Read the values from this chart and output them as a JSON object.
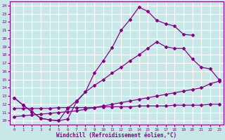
{
  "background_color": "#c8e8e8",
  "grid_color": "#ffffff",
  "line_color": "#880088",
  "xlabel": "Windchill (Refroidissement éolien,°C)",
  "xlim": [
    -0.5,
    23.5
  ],
  "ylim": [
    9.5,
    24.5
  ],
  "xticks": [
    0,
    1,
    2,
    3,
    4,
    5,
    6,
    7,
    8,
    9,
    10,
    11,
    12,
    13,
    14,
    15,
    16,
    17,
    18,
    19,
    20,
    21,
    22,
    23
  ],
  "yticks": [
    10,
    11,
    12,
    13,
    14,
    15,
    16,
    17,
    18,
    19,
    20,
    21,
    22,
    23,
    24
  ],
  "curve1_x": [
    0,
    1,
    2,
    3,
    4,
    5,
    6,
    7,
    8,
    9,
    10,
    11,
    12,
    13,
    14,
    15,
    16,
    17,
    18,
    19,
    20,
    21,
    22,
    23
  ],
  "curve1_y": [
    12.8,
    11.9,
    11.1,
    10.3,
    10.1,
    10.0,
    10.2,
    12.3,
    13.5,
    15.8,
    17.3,
    18.9,
    21.0,
    22.3,
    23.8,
    23.3,
    22.2,
    21.8,
    21.5,
    20.5,
    20.4,
    null,
    null,
    null
  ],
  "curve2_x": [
    0,
    1,
    2,
    3,
    4,
    5,
    6,
    7,
    8,
    9,
    10,
    11,
    12,
    13,
    14,
    15,
    16,
    17,
    18,
    19,
    20,
    21,
    22,
    23
  ],
  "curve2_y": [
    12.8,
    11.9,
    11.1,
    10.3,
    10.1,
    10.0,
    11.5,
    12.4,
    13.5,
    14.3,
    15.0,
    15.8,
    16.5,
    17.3,
    18.0,
    18.8,
    19.6,
    19.0,
    18.8,
    18.8,
    17.5,
    16.5,
    16.3,
    15.0
  ],
  "curve3_x": [
    0,
    1,
    2,
    3,
    4,
    5,
    6,
    7,
    8,
    9,
    10,
    11,
    12,
    13,
    14,
    15,
    16,
    17,
    18,
    19,
    20,
    21,
    22,
    23
  ],
  "curve3_y": [
    10.5,
    10.6,
    10.7,
    10.8,
    10.9,
    11.0,
    11.1,
    11.2,
    11.4,
    11.6,
    11.8,
    12.0,
    12.2,
    12.4,
    12.6,
    12.8,
    13.0,
    13.2,
    13.4,
    13.6,
    13.8,
    14.0,
    14.5,
    14.8
  ],
  "curve4_x": [
    0,
    1,
    2,
    3,
    4,
    5,
    6,
    7,
    8,
    9,
    10,
    11,
    12,
    13,
    14,
    15,
    16,
    17,
    18,
    19,
    20,
    21,
    22,
    23
  ],
  "curve4_y": [
    11.5,
    11.5,
    11.5,
    11.5,
    11.5,
    11.6,
    11.6,
    11.6,
    11.6,
    11.6,
    11.7,
    11.7,
    11.7,
    11.7,
    11.8,
    11.8,
    11.8,
    11.8,
    11.9,
    11.9,
    11.9,
    11.9,
    12.0,
    12.0
  ]
}
